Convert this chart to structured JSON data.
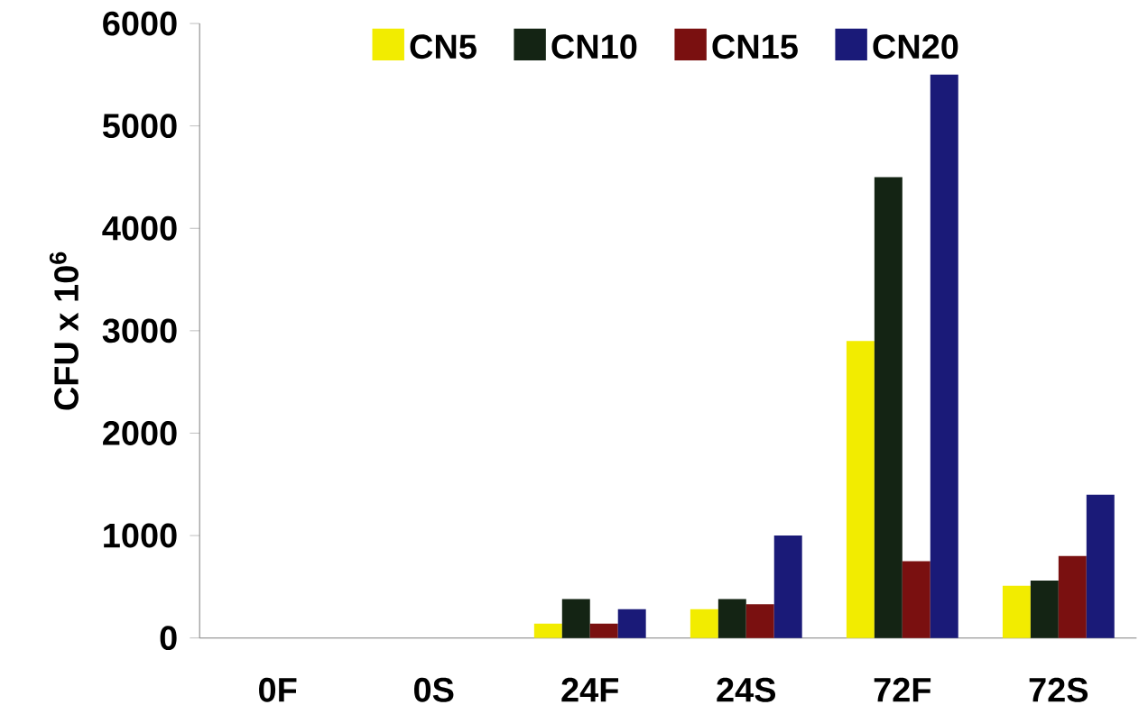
{
  "chart_data": {
    "type": "bar",
    "ylabel": "CFU x 10$^{6}$",
    "categories": [
      "0F",
      "0S",
      "24F",
      "24S",
      "72F",
      "72S"
    ],
    "series": [
      {
        "name": "CN5",
        "color": "#f2ec00",
        "values": [
          0,
          0,
          140,
          280,
          2900,
          510
        ]
      },
      {
        "name": "CN10",
        "color": "#142414",
        "values": [
          0,
          0,
          380,
          380,
          4500,
          560
        ]
      },
      {
        "name": "CN15",
        "color": "#7a1010",
        "values": [
          0,
          0,
          140,
          330,
          750,
          800
        ]
      },
      {
        "name": "CN20",
        "color": "#1a1a78",
        "values": [
          0,
          0,
          280,
          1000,
          5500,
          1400
        ]
      }
    ],
    "ylim": [
      0,
      6000
    ],
    "yticks": [
      0,
      1000,
      2000,
      3000,
      4000,
      5000,
      6000
    ],
    "legend": "top"
  }
}
